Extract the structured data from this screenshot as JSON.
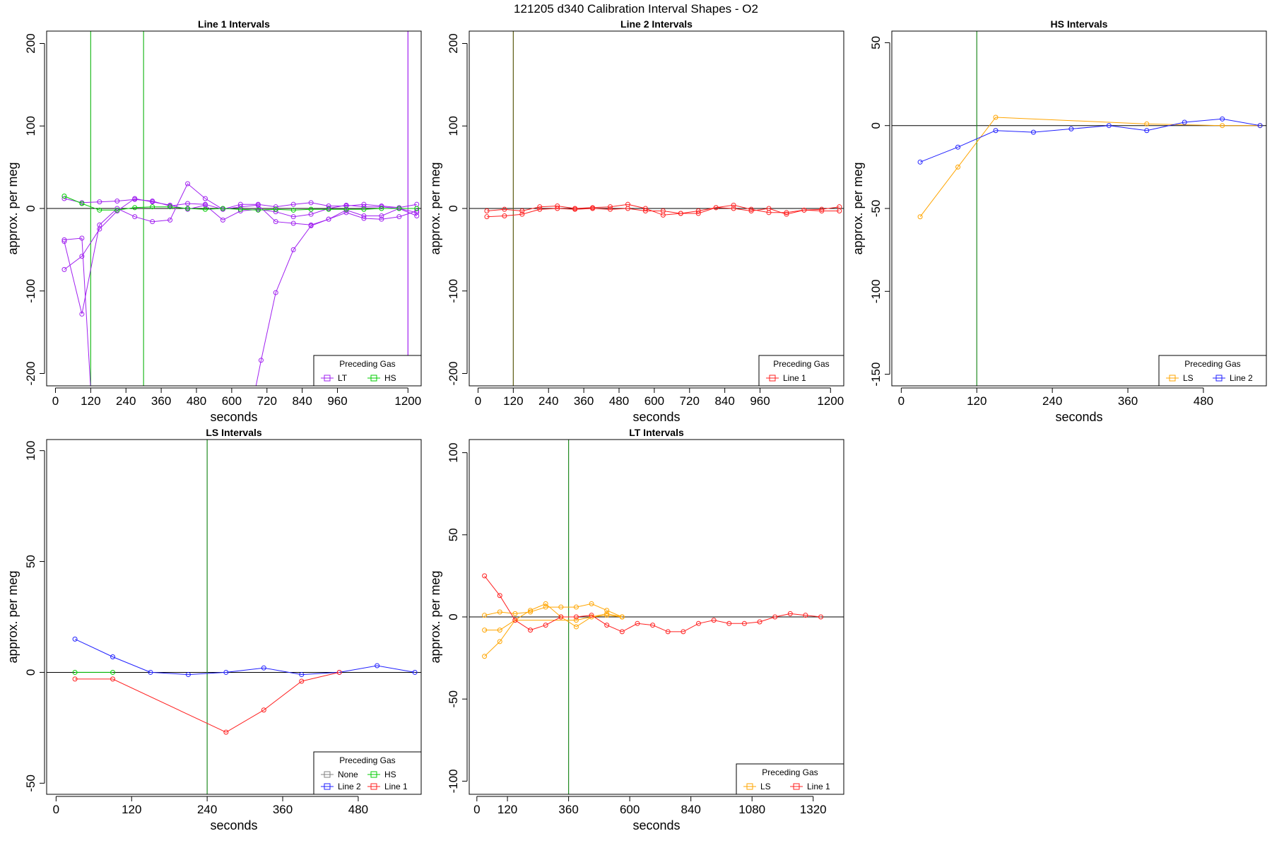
{
  "figure_title": "121205   d340   Calibration Interval Shapes - O2",
  "chart_data": [
    {
      "type": "line",
      "title": "Line 1 Intervals",
      "xlabel": "seconds",
      "ylabel": "approx. per meg",
      "xlim": [
        -30,
        1245
      ],
      "ylim": [
        -215,
        215
      ],
      "xticks": [
        0,
        120,
        240,
        360,
        480,
        600,
        720,
        840,
        960,
        1200
      ],
      "yticks": [
        -200,
        -100,
        0,
        100,
        200
      ],
      "vlines": [
        {
          "x": 120,
          "color": "#22bb22"
        },
        {
          "x": 300,
          "color": "#22bb22"
        },
        {
          "x": 1200,
          "color": "#a020f0"
        }
      ],
      "legend": {
        "title": "Preceding Gas",
        "position": "bottom-right",
        "entries": [
          {
            "label": "LT",
            "color": "#a020f0"
          },
          {
            "label": "HS",
            "color": "#00cc00"
          }
        ]
      },
      "series": [
        {
          "name": "LT",
          "color": "#a020f0",
          "x": [
            30,
            90,
            150,
            210,
            270,
            330,
            390,
            450,
            510,
            570,
            630,
            690,
            750,
            810,
            870,
            930,
            990,
            1050,
            1110,
            1170,
            1230
          ],
          "y": [
            -40,
            -128,
            -20,
            0,
            -10,
            -16,
            -14,
            30,
            12,
            -1,
            2,
            4,
            -16,
            -18,
            -20,
            -13,
            -2,
            -9,
            -9,
            0,
            -5
          ]
        },
        {
          "name": "LT",
          "color": "#a020f0",
          "x": [
            30,
            90,
            150,
            210,
            270,
            330,
            390,
            450,
            510,
            570,
            630,
            690,
            750,
            810,
            870,
            930,
            990,
            1050,
            1110,
            1170,
            1230
          ],
          "y": [
            12,
            7,
            8,
            9,
            11,
            9,
            3,
            6,
            5,
            -1,
            5,
            5,
            2,
            5,
            7,
            3,
            3,
            5,
            3,
            1,
            5
          ]
        },
        {
          "name": "LT",
          "color": "#a020f0",
          "x": [
            30,
            90,
            150,
            210,
            270,
            330,
            390,
            450,
            510,
            570,
            630,
            690,
            750,
            810,
            870,
            930,
            990,
            1050,
            1110,
            1170,
            1230
          ],
          "y": [
            -74,
            -58,
            -25,
            -3,
            12,
            8,
            4,
            -1,
            4,
            -14,
            -3,
            -1,
            -4,
            -10,
            -7,
            0,
            4,
            2,
            2,
            0,
            -9
          ]
        },
        {
          "name": "LT",
          "color": "#a020f0",
          "x": [
            30,
            90,
            120
          ],
          "y": [
            -38,
            -36,
            -220
          ]
        },
        {
          "name": "LT",
          "color": "#a020f0",
          "x": [
            680,
            700,
            750,
            810,
            870,
            930,
            990,
            1050,
            1110,
            1170,
            1230
          ],
          "y": [
            -220,
            -184,
            -102,
            -50,
            -21,
            -13,
            -5,
            -12,
            -13,
            -10,
            -3
          ]
        },
        {
          "name": "HS",
          "color": "#00cc00",
          "x": [
            30,
            90,
            150,
            210,
            270,
            330,
            390,
            450,
            510,
            570,
            630,
            690,
            750,
            810,
            870,
            930,
            990,
            1050,
            1110,
            1170,
            1230
          ],
          "y": [
            15,
            6,
            -2,
            -2,
            1,
            2,
            2,
            0,
            -1,
            0,
            -1,
            -2,
            -1,
            -2,
            -1,
            -1,
            -1,
            -1,
            0,
            0,
            0
          ]
        }
      ]
    },
    {
      "type": "line",
      "title": "Line 2 Intervals",
      "xlabel": "seconds",
      "ylabel": "approx. per meg",
      "xlim": [
        -30,
        1245
      ],
      "ylim": [
        -215,
        215
      ],
      "xticks": [
        0,
        120,
        240,
        360,
        480,
        600,
        720,
        840,
        960,
        1200
      ],
      "yticks": [
        -200,
        -100,
        0,
        100,
        200
      ],
      "vlines": [
        {
          "x": 120,
          "color": "#5a5a10"
        }
      ],
      "legend": {
        "title": "Preceding Gas",
        "position": "bottom-right",
        "entries": [
          {
            "label": "Line 1",
            "color": "#ff2020"
          }
        ]
      },
      "series": [
        {
          "name": "Line 1",
          "color": "#ff2020",
          "x": [
            30,
            90,
            150,
            210,
            270,
            330,
            390,
            450,
            510,
            570,
            630,
            690,
            750,
            810,
            870,
            930,
            990,
            1050,
            1110,
            1170,
            1230
          ],
          "y": [
            -3,
            -1,
            -3,
            2,
            3,
            0,
            1,
            2,
            5,
            0,
            -8,
            -6,
            -3,
            1,
            4,
            -1,
            -5,
            -5,
            -2,
            -1,
            2
          ]
        },
        {
          "name": "Line 1",
          "color": "#ff2020",
          "x": [
            30,
            90,
            150,
            210,
            270,
            330,
            390,
            450,
            510,
            570,
            630,
            690,
            750,
            810,
            870,
            930,
            990,
            1050,
            1110,
            1170,
            1230
          ],
          "y": [
            -10,
            -9,
            -7,
            -1,
            0,
            -1,
            0,
            -1,
            0,
            -3,
            -3,
            -6,
            -6,
            1,
            0,
            -3,
            0,
            -7,
            -2,
            -3,
            -3
          ]
        }
      ]
    },
    {
      "type": "line",
      "title": "HS Intervals",
      "xlabel": "seconds",
      "ylabel": "approx. per meg",
      "xlim": [
        -15,
        580
      ],
      "ylim": [
        -157,
        57
      ],
      "xticks": [
        0,
        120,
        240,
        360,
        480
      ],
      "yticks": [
        -150,
        -100,
        -50,
        0,
        50
      ],
      "vlines": [
        {
          "x": 120,
          "color": "#228b22"
        }
      ],
      "legend": {
        "title": "Preceding Gas",
        "position": "bottom-right",
        "entries": [
          {
            "label": "LS",
            "color": "#ffa500"
          },
          {
            "label": "Line 2",
            "color": "#2020ff"
          }
        ]
      },
      "series": [
        {
          "name": "LS",
          "color": "#ffa500",
          "x": [
            30,
            90,
            150,
            390,
            510,
            570
          ],
          "y": [
            -55,
            -25,
            5,
            1,
            0,
            0
          ]
        },
        {
          "name": "Line 2",
          "color": "#2020ff",
          "x": [
            30,
            90,
            150,
            210,
            270,
            330,
            390,
            450,
            510,
            570
          ],
          "y": [
            -22,
            -13,
            -3,
            -4,
            -2,
            0,
            -3,
            2,
            4,
            0
          ]
        }
      ]
    },
    {
      "type": "line",
      "title": "LS Intervals",
      "xlabel": "seconds",
      "ylabel": "approx. per meg",
      "xlim": [
        -15,
        580
      ],
      "ylim": [
        -55,
        105
      ],
      "xticks": [
        0,
        120,
        240,
        360,
        480
      ],
      "yticks": [
        -50,
        0,
        50,
        100
      ],
      "vlines": [
        {
          "x": 240,
          "color": "#228b22"
        }
      ],
      "legend": {
        "title": "Preceding Gas",
        "position": "bottom-right",
        "entries": [
          {
            "label": "None",
            "color": "#808080"
          },
          {
            "label": "HS",
            "color": "#00cc00"
          },
          {
            "label": "Line 2",
            "color": "#2020ff"
          },
          {
            "label": "Line 1",
            "color": "#ff2020"
          }
        ]
      },
      "series": [
        {
          "name": "Line 2",
          "color": "#2020ff",
          "x": [
            30,
            90,
            150,
            210,
            270,
            330,
            390,
            450,
            510,
            570
          ],
          "y": [
            15,
            7,
            0,
            -1,
            0,
            2,
            -1,
            0,
            3,
            0
          ]
        },
        {
          "name": "Line 1",
          "color": "#ff2020",
          "x": [
            30,
            90,
            270,
            330,
            390,
            450
          ],
          "y": [
            -3,
            -3,
            -27,
            -17,
            -4,
            0
          ]
        },
        {
          "name": "HS",
          "color": "#00cc00",
          "x": [
            30,
            90
          ],
          "y": [
            0,
            0
          ]
        }
      ]
    },
    {
      "type": "line",
      "title": "LT Intervals",
      "xlabel": "seconds",
      "ylabel": "approx. per meg",
      "xlim": [
        -30,
        1440
      ],
      "ylim": [
        -108,
        108
      ],
      "xticks": [
        0,
        120,
        360,
        600,
        840,
        1080,
        1320
      ],
      "yticks": [
        -100,
        -50,
        0,
        50,
        100
      ],
      "vlines": [
        {
          "x": 360,
          "color": "#228b22"
        }
      ],
      "legend": {
        "title": "Preceding Gas",
        "position": "bottom-right",
        "entries": [
          {
            "label": "LS",
            "color": "#ffa500"
          },
          {
            "label": "Line 1",
            "color": "#ff2020"
          }
        ]
      },
      "series": [
        {
          "name": "LS",
          "color": "#ffa500",
          "x": [
            30,
            90,
            150,
            210,
            270,
            330,
            390,
            450,
            510,
            570
          ],
          "y": [
            1,
            3,
            2,
            3,
            6,
            6,
            6,
            8,
            4,
            0
          ]
        },
        {
          "name": "LS",
          "color": "#ffa500",
          "x": [
            30,
            90,
            150,
            210,
            270,
            330,
            390,
            450,
            510,
            570
          ],
          "y": [
            -8,
            -8,
            -2,
            4,
            8,
            0,
            -6,
            0,
            1,
            0
          ]
        },
        {
          "name": "LS",
          "color": "#ffa500",
          "x": [
            30,
            90,
            150,
            390,
            510,
            570
          ],
          "y": [
            -24,
            -15,
            -2,
            -2,
            2,
            0
          ]
        },
        {
          "name": "Line 1",
          "color": "#ff2020",
          "x": [
            30,
            90,
            150,
            210,
            270,
            330,
            390,
            450,
            510,
            570,
            630,
            690,
            750,
            810,
            870,
            930,
            990,
            1050,
            1110,
            1170,
            1230,
            1290,
            1350
          ],
          "y": [
            25,
            13,
            -2,
            -8,
            -5,
            0,
            0,
            1,
            -5,
            -9,
            -4,
            -5,
            -9,
            -9,
            -4,
            -2,
            -4,
            -4,
            -3,
            0,
            2,
            1,
            0
          ]
        }
      ]
    }
  ]
}
